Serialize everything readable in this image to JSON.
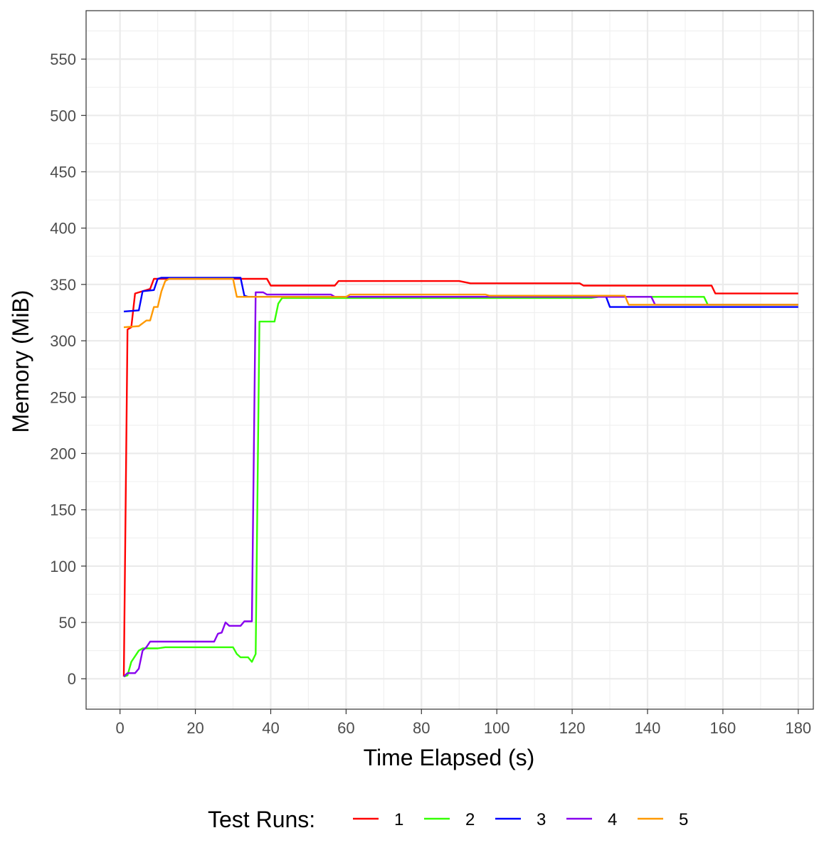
{
  "chart_data": {
    "type": "line",
    "title": "",
    "xlabel": "Time Elapsed (s)",
    "ylabel": "Memory (MiB)",
    "xlim": [
      -9,
      184
    ],
    "ylim": [
      -27,
      593
    ],
    "x_ticks": [
      0,
      20,
      40,
      60,
      80,
      100,
      120,
      140,
      160,
      180
    ],
    "y_ticks": [
      0,
      50,
      100,
      150,
      200,
      250,
      300,
      350,
      400,
      450,
      500,
      550
    ],
    "grid": true,
    "legend": {
      "title": "Test Runs:",
      "position": "bottom"
    },
    "series": [
      {
        "name": "1",
        "color": "#ff0000",
        "points": [
          [
            1,
            2
          ],
          [
            2,
            310
          ],
          [
            3,
            312
          ],
          [
            4,
            342
          ],
          [
            6,
            344
          ],
          [
            8,
            346
          ],
          [
            9,
            355
          ],
          [
            30,
            355
          ],
          [
            39,
            355
          ],
          [
            40,
            349
          ],
          [
            57,
            349
          ],
          [
            58,
            353
          ],
          [
            90,
            353
          ],
          [
            93,
            351
          ],
          [
            122,
            351
          ],
          [
            123,
            349
          ],
          [
            157,
            349
          ],
          [
            158,
            342
          ],
          [
            180,
            342
          ]
        ]
      },
      {
        "name": "2",
        "color": "#33ff00",
        "points": [
          [
            1,
            2
          ],
          [
            2,
            3
          ],
          [
            3,
            15
          ],
          [
            4,
            20
          ],
          [
            5,
            25
          ],
          [
            6,
            27
          ],
          [
            10,
            27
          ],
          [
            12,
            28
          ],
          [
            30,
            28
          ],
          [
            31,
            22
          ],
          [
            32,
            19
          ],
          [
            34,
            19
          ],
          [
            35,
            15
          ],
          [
            36,
            22
          ],
          [
            37,
            317
          ],
          [
            41,
            317
          ],
          [
            42,
            333
          ],
          [
            43,
            338
          ],
          [
            125,
            338
          ],
          [
            127,
            339
          ],
          [
            155,
            339
          ],
          [
            156,
            332
          ],
          [
            180,
            332
          ]
        ]
      },
      {
        "name": "3",
        "color": "#0000ff",
        "points": [
          [
            1,
            326
          ],
          [
            5,
            327
          ],
          [
            6,
            344
          ],
          [
            9,
            345
          ],
          [
            10,
            355
          ],
          [
            11,
            356
          ],
          [
            32,
            356
          ],
          [
            33,
            340
          ],
          [
            34,
            339
          ],
          [
            129,
            339
          ],
          [
            130,
            330
          ],
          [
            180,
            330
          ]
        ]
      },
      {
        "name": "4",
        "color": "#8800ee",
        "points": [
          [
            1,
            2
          ],
          [
            2,
            5
          ],
          [
            4,
            5
          ],
          [
            5,
            9
          ],
          [
            6,
            25
          ],
          [
            7,
            28
          ],
          [
            8,
            33
          ],
          [
            9,
            33
          ],
          [
            25,
            33
          ],
          [
            26,
            40
          ],
          [
            27,
            41
          ],
          [
            28,
            50
          ],
          [
            29,
            47
          ],
          [
            32,
            47
          ],
          [
            33,
            51
          ],
          [
            35,
            51
          ],
          [
            36,
            343
          ],
          [
            38,
            343
          ],
          [
            39,
            341
          ],
          [
            56,
            341
          ],
          [
            57,
            339
          ],
          [
            141,
            339
          ],
          [
            142,
            332
          ],
          [
            180,
            332
          ]
        ]
      },
      {
        "name": "5",
        "color": "#ff9900",
        "points": [
          [
            1,
            312
          ],
          [
            5,
            313
          ],
          [
            7,
            318
          ],
          [
            8,
            318
          ],
          [
            9,
            330
          ],
          [
            10,
            330
          ],
          [
            11,
            344
          ],
          [
            12,
            353
          ],
          [
            13,
            355
          ],
          [
            30,
            355
          ],
          [
            31,
            339
          ],
          [
            60,
            339
          ],
          [
            61,
            341
          ],
          [
            97,
            341
          ],
          [
            98,
            340
          ],
          [
            134,
            340
          ],
          [
            135,
            332
          ],
          [
            180,
            332
          ]
        ]
      }
    ]
  }
}
